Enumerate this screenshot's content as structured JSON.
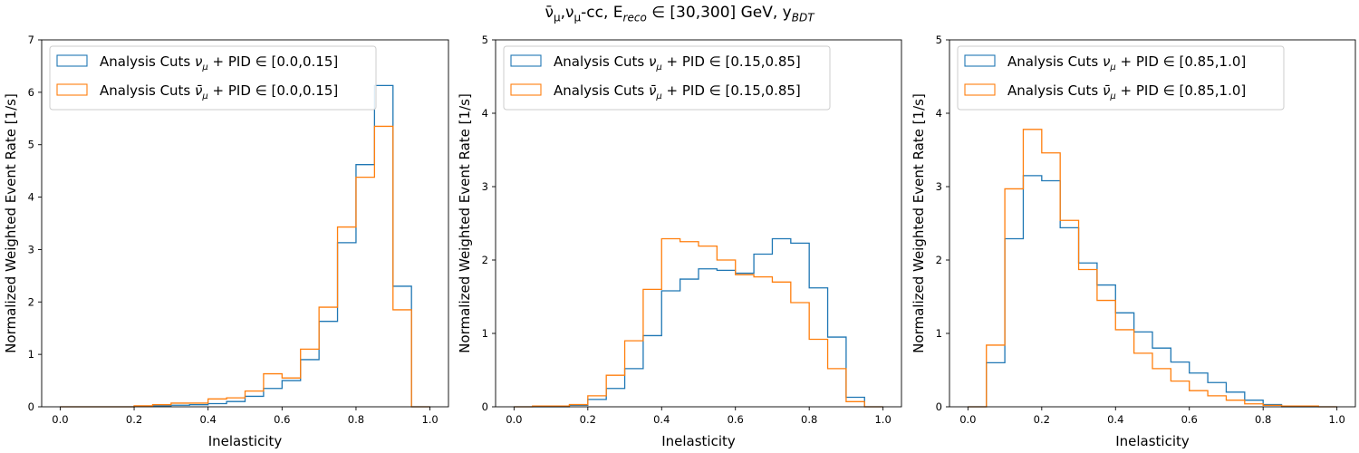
{
  "figure": {
    "title": "ν̄μ,νμ-cc, Ereco ∈ [30,300] GeV, yBDT",
    "title_parts": {
      "nubar": "ν̄",
      "mu1": "μ",
      "comma": ",",
      "nu": "ν",
      "mu2": "μ",
      "cc": "-cc, E",
      "reco": "reco",
      "range": " ∈ [30,300] GeV, y",
      "bdt": "BDT"
    }
  },
  "colors": {
    "numu": "#1f77b4",
    "numubar": "#ff7f0e"
  },
  "chart_data": [
    {
      "type": "step-histogram",
      "xlabel": "Inelasticity",
      "ylabel": "Normalized Weighted Event Rate [1/s]",
      "xlim": [
        -0.05,
        1.05
      ],
      "ylim": [
        0,
        7
      ],
      "xticks": [
        "0.0",
        "0.2",
        "0.4",
        "0.6",
        "0.8",
        "1.0"
      ],
      "yticks": [
        "0",
        "1",
        "2",
        "3",
        "4",
        "5",
        "6",
        "7"
      ],
      "bin_edges": [
        0,
        0.05,
        0.1,
        0.15,
        0.2,
        0.25,
        0.3,
        0.35,
        0.4,
        0.45,
        0.5,
        0.55,
        0.6,
        0.65,
        0.7,
        0.75,
        0.8,
        0.85,
        0.9,
        0.95,
        1.0
      ],
      "legend_position": "upper-left",
      "series": [
        {
          "name": "Analysis Cuts νμ + PID ∈ [0.0,0.15]",
          "label_prefix": "Analysis Cuts ",
          "particle": "ν",
          "bar": false,
          "sub": "μ",
          "label_suffix": " + PID ∈ [0.0,0.15]",
          "values": [
            0,
            0,
            0,
            0,
            0.01,
            0.02,
            0.03,
            0.04,
            0.06,
            0.1,
            0.2,
            0.35,
            0.5,
            0.9,
            1.63,
            3.13,
            4.62,
            6.13,
            2.3,
            0
          ]
        },
        {
          "name": "Analysis Cuts ν̄μ + PID ∈ [0.0,0.15]",
          "label_prefix": "Analysis Cuts ",
          "particle": "ν",
          "bar": true,
          "sub": "μ",
          "label_suffix": " + PID ∈ [0.0,0.15]",
          "values": [
            0,
            0,
            0,
            0,
            0.02,
            0.04,
            0.07,
            0.07,
            0.15,
            0.17,
            0.3,
            0.63,
            0.55,
            1.1,
            1.9,
            3.43,
            4.38,
            5.35,
            1.85,
            0
          ]
        }
      ]
    },
    {
      "type": "step-histogram",
      "xlabel": "Inelasticity",
      "ylabel": "Normalized Weighted Event Rate [1/s]",
      "xlim": [
        -0.05,
        1.05
      ],
      "ylim": [
        0,
        5
      ],
      "xticks": [
        "0.0",
        "0.2",
        "0.4",
        "0.6",
        "0.8",
        "1.0"
      ],
      "yticks": [
        "0",
        "1",
        "2",
        "3",
        "4",
        "5"
      ],
      "bin_edges": [
        0,
        0.05,
        0.1,
        0.15,
        0.2,
        0.25,
        0.3,
        0.35,
        0.4,
        0.45,
        0.5,
        0.55,
        0.6,
        0.65,
        0.7,
        0.75,
        0.8,
        0.85,
        0.9,
        0.95,
        1.0
      ],
      "legend_position": "upper-left",
      "series": [
        {
          "name": "Analysis Cuts νμ + PID ∈ [0.15,0.85]",
          "label_prefix": "Analysis Cuts ",
          "particle": "ν",
          "bar": false,
          "sub": "μ",
          "label_suffix": " + PID ∈ [0.15,0.85]",
          "values": [
            0,
            0,
            0,
            0.02,
            0.1,
            0.25,
            0.52,
            0.97,
            1.58,
            1.74,
            1.88,
            1.86,
            1.82,
            2.08,
            2.29,
            2.23,
            1.62,
            0.95,
            0.13,
            0
          ]
        },
        {
          "name": "Analysis Cuts ν̄μ + PID ∈ [0.15,0.85]",
          "label_prefix": "Analysis Cuts ",
          "particle": "ν",
          "bar": true,
          "sub": "μ",
          "label_suffix": " + PID ∈ [0.15,0.85]",
          "values": [
            0,
            0.01,
            0.01,
            0.03,
            0.15,
            0.43,
            0.9,
            1.6,
            2.29,
            2.25,
            2.19,
            2.0,
            1.8,
            1.77,
            1.7,
            1.42,
            0.92,
            0.52,
            0.07,
            0
          ]
        }
      ]
    },
    {
      "type": "step-histogram",
      "xlabel": "Inelasticity",
      "ylabel": "Normalized Weighted Event Rate [1/s]",
      "xlim": [
        -0.05,
        1.05
      ],
      "ylim": [
        0,
        5
      ],
      "xticks": [
        "0.0",
        "0.2",
        "0.4",
        "0.6",
        "0.8",
        "1.0"
      ],
      "yticks": [
        "0",
        "1",
        "2",
        "3",
        "4",
        "5"
      ],
      "bin_edges": [
        0,
        0.05,
        0.1,
        0.15,
        0.2,
        0.25,
        0.3,
        0.35,
        0.4,
        0.45,
        0.5,
        0.55,
        0.6,
        0.65,
        0.7,
        0.75,
        0.8,
        0.85,
        0.9,
        0.95,
        1.0
      ],
      "legend_position": "upper-left",
      "series": [
        {
          "name": "Analysis Cuts νμ + PID ∈ [0.85,1.0]",
          "label_prefix": "Analysis Cuts ",
          "particle": "ν",
          "bar": false,
          "sub": "μ",
          "label_suffix": " + PID ∈ [0.85,1.0]",
          "values": [
            0,
            0.6,
            2.29,
            3.15,
            3.08,
            2.44,
            1.96,
            1.66,
            1.28,
            1.02,
            0.8,
            0.61,
            0.46,
            0.33,
            0.2,
            0.09,
            0.03,
            0,
            0,
            0
          ]
        },
        {
          "name": "Analysis Cuts ν̄μ + PID ∈ [0.85,1.0]",
          "label_prefix": "Analysis Cuts ",
          "particle": "ν",
          "bar": true,
          "sub": "μ",
          "label_suffix": " + PID ∈ [0.85,1.0]",
          "values": [
            0,
            0.84,
            2.97,
            3.78,
            3.46,
            2.54,
            1.87,
            1.45,
            1.05,
            0.73,
            0.52,
            0.35,
            0.22,
            0.15,
            0.09,
            0.04,
            0.02,
            0.01,
            0.01,
            0
          ]
        }
      ]
    }
  ]
}
